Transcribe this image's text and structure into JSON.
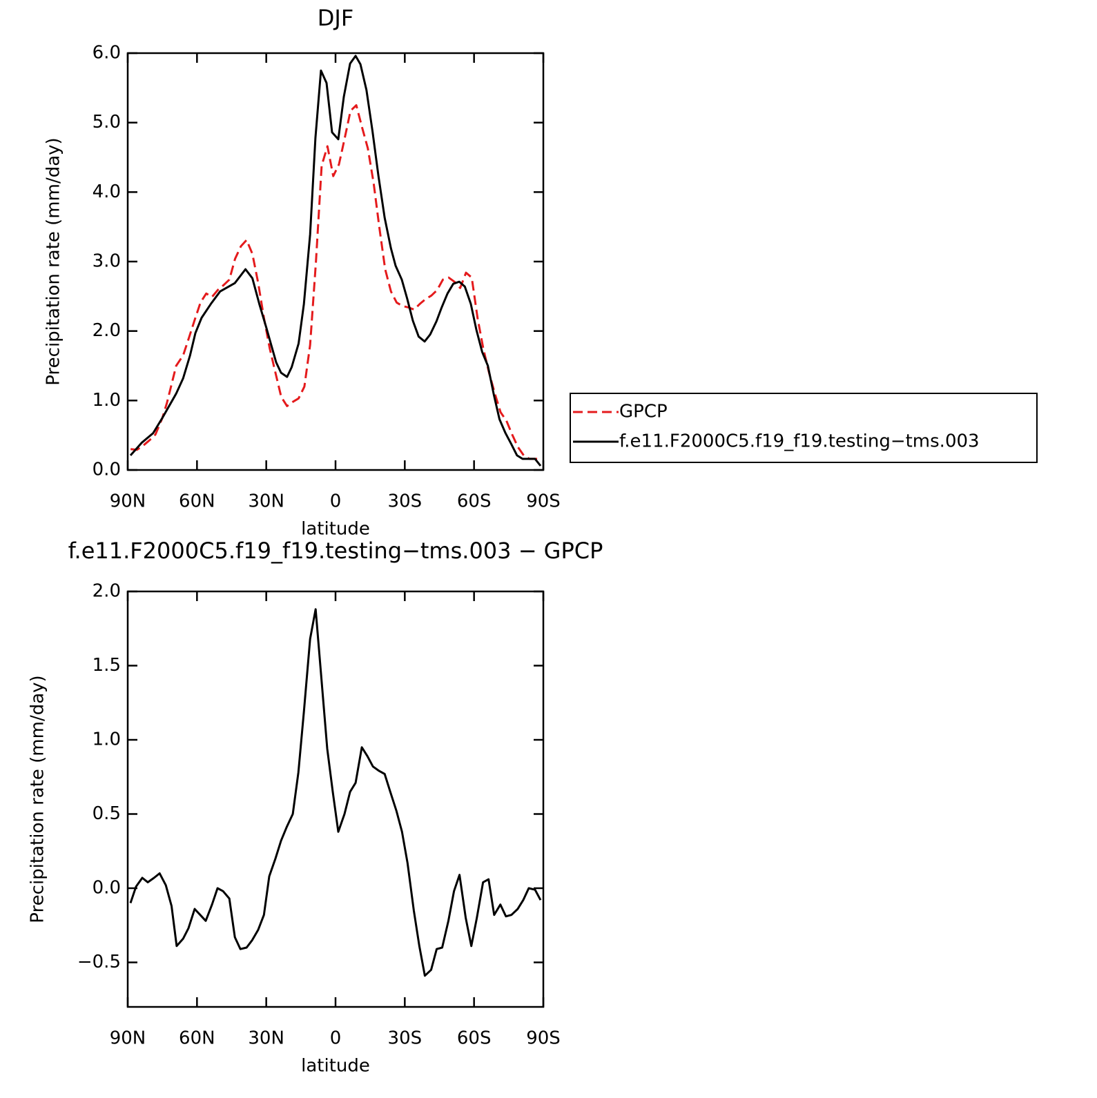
{
  "chart_data": [
    {
      "type": "line",
      "title": "DJF",
      "xlabel": "latitude",
      "ylabel": "Precipitation rate (mm/day)",
      "xlim": [
        90,
        -90
      ],
      "xticks": [
        {
          "value": 90,
          "label": "90N"
        },
        {
          "value": 60,
          "label": "60N"
        },
        {
          "value": 30,
          "label": "30N"
        },
        0,
        {
          "value": -30,
          "label": "30S"
        },
        {
          "value": -60,
          "label": "60S"
        },
        {
          "value": -90,
          "label": "90S"
        }
      ],
      "ylim": [
        0,
        6
      ],
      "yticks": [
        {
          "value": 0,
          "label": "0.0"
        },
        {
          "value": 1,
          "label": "1.0"
        },
        {
          "value": 2,
          "label": "2.0"
        },
        {
          "value": 3,
          "label": "3.0"
        },
        {
          "value": 4,
          "label": "4.0"
        },
        {
          "value": 5,
          "label": "5.0"
        },
        {
          "value": 6,
          "label": "6.0"
        }
      ],
      "legend": "right",
      "series": [
        {
          "name": "GPCP",
          "color": "#e41a1c",
          "linestyle": "dashed",
          "x": [
            88.75,
            86,
            83,
            80.5,
            78,
            75,
            73,
            69,
            66,
            63.5,
            61,
            58.5,
            56,
            53.5,
            51,
            48.5,
            46,
            43.5,
            41,
            38.5,
            36,
            33.5,
            31,
            28.5,
            26,
            23.5,
            21,
            18.5,
            16,
            13.5,
            11,
            8.5,
            6,
            3.5,
            1,
            -1.5,
            -4,
            -6.5,
            -9,
            -11.5,
            -14,
            -16.5,
            -19,
            -21.5,
            -24,
            -26.5,
            -29,
            -31.5,
            -34,
            -36.5,
            -39,
            -41.5,
            -44,
            -46.5,
            -49,
            -51.5,
            -54,
            -56.5,
            -59,
            -61.5,
            -64,
            -66.5,
            -69,
            -71.5,
            -74,
            -76.5,
            -79,
            -81.5,
            -84,
            -86.5,
            -89
          ],
          "values": [
            0.3,
            0.29,
            0.36,
            0.43,
            0.51,
            0.75,
            0.97,
            1.5,
            1.65,
            1.9,
            2.16,
            2.41,
            2.54,
            2.49,
            2.59,
            2.66,
            2.74,
            3.04,
            3.22,
            3.31,
            3.11,
            2.69,
            2.19,
            1.75,
            1.4,
            1.05,
            0.92,
            0.98,
            1.03,
            1.2,
            1.8,
            2.99,
            4.38,
            4.66,
            4.23,
            4.4,
            4.78,
            5.17,
            5.25,
            4.93,
            4.63,
            4.13,
            3.49,
            2.89,
            2.57,
            2.41,
            2.36,
            2.34,
            2.31,
            2.39,
            2.46,
            2.51,
            2.59,
            2.74,
            2.77,
            2.71,
            2.62,
            2.84,
            2.77,
            2.19,
            1.75,
            1.4,
            1.1,
            0.83,
            0.71,
            0.51,
            0.33,
            0.21,
            0.16,
            0.16,
            0.16
          ]
        },
        {
          "name": "f.e11.F2000C5.f19_f19.testing−tms.003",
          "color": "#000000",
          "linestyle": "solid",
          "x": [
            88.8,
            84,
            79,
            75,
            69,
            66,
            63,
            60.7,
            58,
            54,
            50,
            43.6,
            39,
            36,
            33,
            30,
            25.7,
            23.6,
            21,
            19,
            16,
            13.7,
            11,
            8.7,
            6.3,
            3.9,
            1.5,
            -1.2,
            -3.6,
            -6.3,
            -8.7,
            -10.8,
            -13.4,
            -16,
            -18.6,
            -21.3,
            -24,
            -26,
            -28.7,
            -31,
            -33.5,
            -36,
            -38.6,
            -41,
            -43.7,
            -46,
            -48.5,
            -51,
            -53.6,
            -56,
            -58.6,
            -61,
            -63.5,
            -66,
            -68.6,
            -71,
            -73.6,
            -76,
            -78.6,
            -81,
            -83.5,
            -86.4,
            -88.8
          ],
          "values": [
            0.21,
            0.39,
            0.53,
            0.75,
            1.1,
            1.32,
            1.65,
            1.97,
            2.19,
            2.39,
            2.57,
            2.69,
            2.89,
            2.76,
            2.39,
            2.05,
            1.55,
            1.4,
            1.34,
            1.48,
            1.82,
            2.39,
            3.39,
            4.78,
            5.75,
            5.57,
            4.86,
            4.76,
            5.37,
            5.85,
            5.96,
            5.84,
            5.47,
            4.88,
            4.23,
            3.63,
            3.19,
            2.94,
            2.74,
            2.47,
            2.15,
            1.92,
            1.85,
            1.95,
            2.14,
            2.34,
            2.54,
            2.68,
            2.71,
            2.64,
            2.39,
            2.02,
            1.7,
            1.5,
            1.08,
            0.73,
            0.53,
            0.38,
            0.21,
            0.16,
            0.16,
            0.16,
            0.06
          ]
        }
      ]
    },
    {
      "type": "line",
      "title": "f.e11.F2000C5.f19_f19.testing−tms.003 − GPCP",
      "xlabel": "latitude",
      "ylabel": "Precipitation rate (mm/day)",
      "xlim": [
        90,
        -90
      ],
      "xticks": [
        {
          "value": 90,
          "label": "90N"
        },
        {
          "value": 60,
          "label": "60N"
        },
        {
          "value": 30,
          "label": "30N"
        },
        0,
        {
          "value": -30,
          "label": "30S"
        },
        {
          "value": -60,
          "label": "60S"
        },
        {
          "value": -90,
          "label": "90S"
        }
      ],
      "ylim": [
        -0.8,
        2
      ],
      "yticks": [
        {
          "value": -0.5,
          "label": "−0.5"
        },
        {
          "value": 0,
          "label": "0.0"
        },
        0.5,
        {
          "value": 1,
          "label": "1.0"
        },
        1.5,
        {
          "value": 2,
          "label": "2.0"
        }
      ],
      "color": "#000000",
      "x": [
        88.8,
        86.4,
        83.7,
        81.3,
        78.6,
        76.2,
        73.5,
        71,
        68.8,
        66,
        63.7,
        61,
        58.6,
        56.2,
        53.5,
        51.1,
        48.7,
        46,
        43.6,
        41.2,
        38.5,
        36.1,
        33.5,
        31,
        28.7,
        26,
        23.6,
        21.2,
        18.5,
        16.1,
        13.7,
        11,
        8.6,
        6.3,
        3.6,
        1.2,
        -1.2,
        -3.9,
        -6.3,
        -8.7,
        -11.4,
        -13.8,
        -16.2,
        -18.9,
        -21.3,
        -23.7,
        -26.4,
        -28.8,
        -31.2,
        -33.9,
        -36.3,
        -38.7,
        -41.4,
        -43.8,
        -46.2,
        -48.9,
        -51.3,
        -53.7,
        -56.4,
        -58.8,
        -61.2,
        -63.9,
        -66.3,
        -68.7,
        -71.4,
        -73.8,
        -76.2,
        -78.9,
        -81.3,
        -83.7,
        -86.4,
        -88.8
      ],
      "values": [
        -0.1,
        0.01,
        0.07,
        0.04,
        0.07,
        0.1,
        0.02,
        -0.12,
        -0.39,
        -0.34,
        -0.27,
        -0.14,
        -0.18,
        -0.22,
        -0.11,
        0,
        -0.02,
        -0.07,
        -0.33,
        -0.41,
        -0.4,
        -0.35,
        -0.28,
        -0.18,
        0.08,
        0.2,
        0.32,
        0.41,
        0.5,
        0.78,
        1.19,
        1.68,
        1.88,
        1.45,
        0.94,
        0.65,
        0.38,
        0.5,
        0.65,
        0.71,
        0.95,
        0.89,
        0.82,
        0.79,
        0.77,
        0.65,
        0.52,
        0.38,
        0.17,
        -0.15,
        -0.39,
        -0.59,
        -0.55,
        -0.41,
        -0.4,
        -0.22,
        -0.02,
        0.09,
        -0.2,
        -0.39,
        -0.2,
        0.04,
        0.06,
        -0.18,
        -0.11,
        -0.19,
        -0.18,
        -0.14,
        -0.08,
        0,
        -0.01,
        -0.08
      ]
    }
  ]
}
